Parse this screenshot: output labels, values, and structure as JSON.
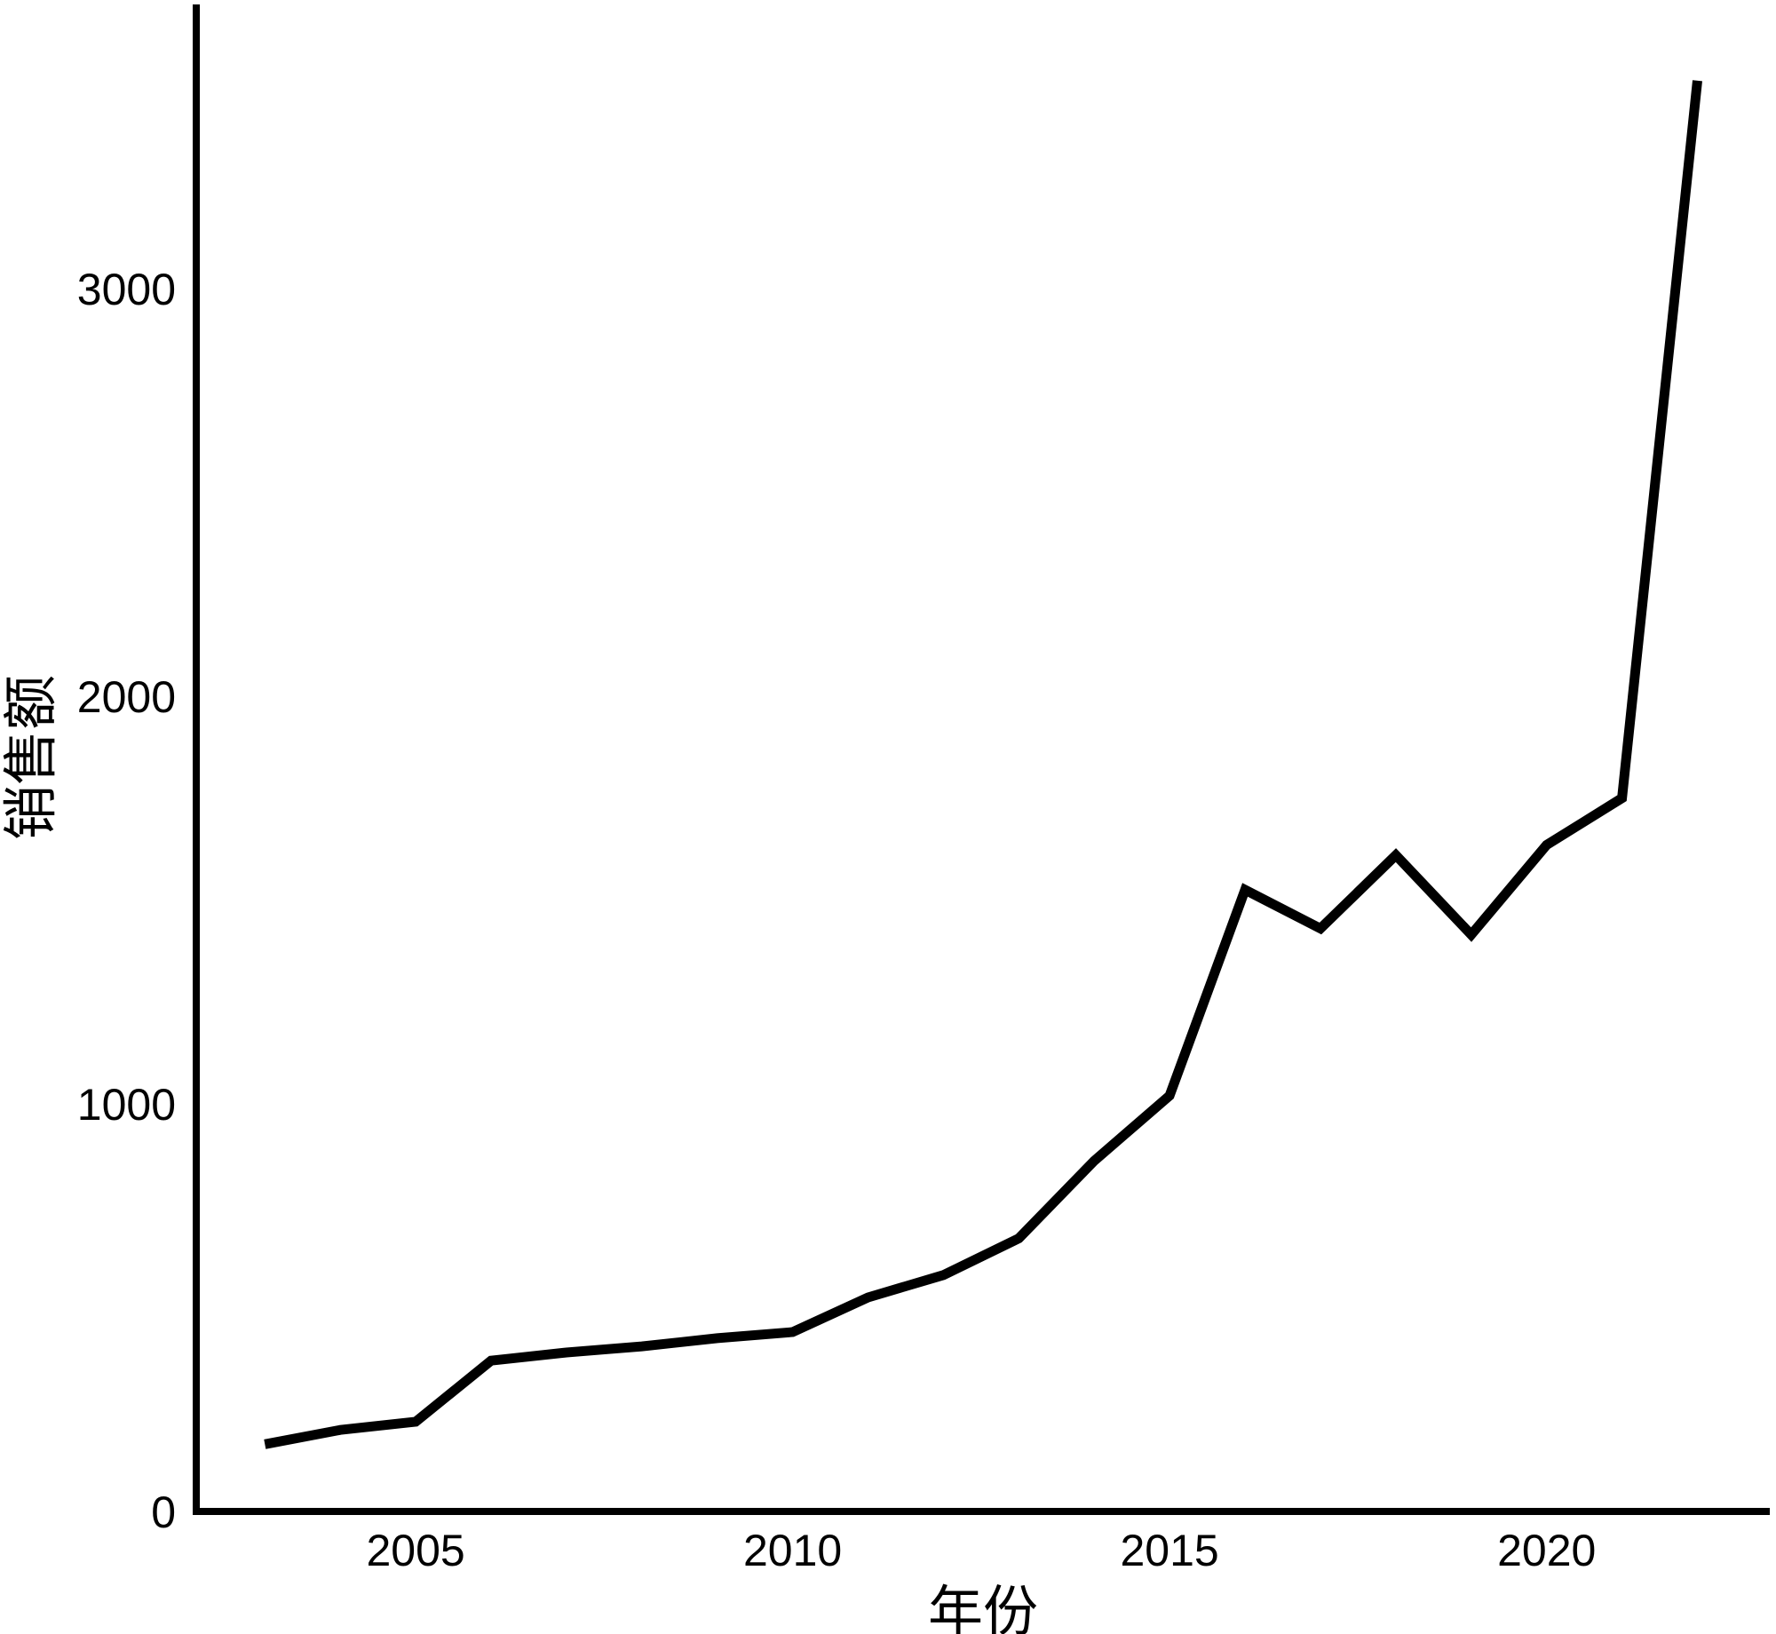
{
  "chart_data": {
    "type": "line",
    "title": "",
    "xlabel": "年份",
    "ylabel": "销售额",
    "x": [
      2003,
      2004,
      2005,
      2006,
      2007,
      2008,
      2009,
      2010,
      2011,
      2012,
      2013,
      2014,
      2015,
      2016,
      2017,
      2018,
      2019,
      2020,
      2021,
      2022
    ],
    "series": [
      {
        "name": "销售额",
        "values": [
          165,
          200,
          220,
          370,
          390,
          405,
          425,
          440,
          525,
          580,
          670,
          860,
          1020,
          1525,
          1430,
          1610,
          1415,
          1635,
          1750,
          3510
        ]
      }
    ],
    "x_ticks": [
      2005,
      2010,
      2015,
      2020
    ],
    "y_ticks": [
      0,
      1000,
      2000,
      3000
    ],
    "xlim": [
      2002.09,
      2022.96
    ],
    "ylim": [
      0,
      3697
    ],
    "grid": false,
    "legend_position": "none",
    "line_color": "#000000",
    "axis_color": "#000000",
    "background_color": "#ffffff"
  }
}
